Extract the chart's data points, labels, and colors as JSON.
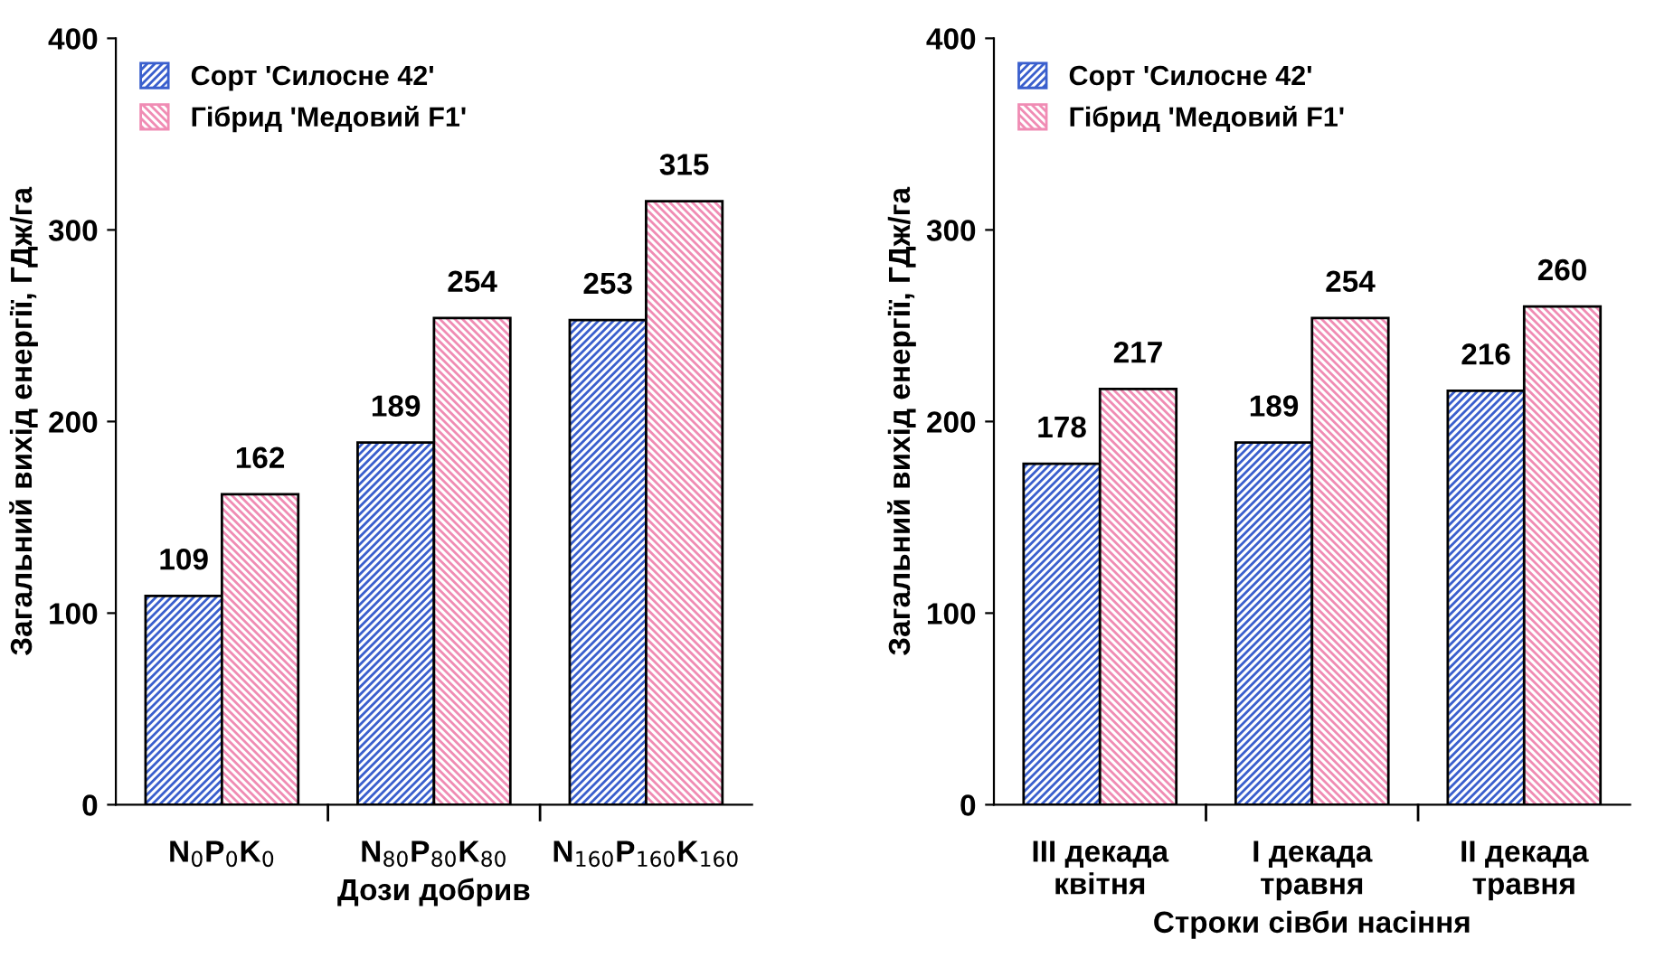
{
  "chart_data": [
    {
      "type": "bar",
      "xlabel": "Дози добрив",
      "ylabel": "Загальний вихід енергії, ГДж/га",
      "categories": [
        "N$_{0}$P$_{0}$K$_{0}$",
        "N$_{80}$P$_{80}$K$_{80}$",
        "N$_{160}$P$_{160}$K$_{160}$"
      ],
      "series": [
        {
          "name": "Сорт 'Силосне 42'",
          "color": "#3a5fcd",
          "values": [
            109,
            189,
            253
          ]
        },
        {
          "name": "Гібрид 'Медовий F1'",
          "color": "#f08cb4",
          "values": [
            162,
            254,
            315
          ]
        }
      ],
      "ylim": [
        0,
        400
      ],
      "yticks": [
        0,
        100,
        200,
        300,
        400
      ],
      "data_labels": true,
      "legend": "top left",
      "grid": false
    },
    {
      "type": "bar",
      "xlabel": "Строки сівби насіння",
      "ylabel": "Загальний вихід енергії, ГДж/га",
      "categories": [
        "III декада\nквітня",
        "I декада\nтравня",
        "II декада\nтравня"
      ],
      "series": [
        {
          "name": "Сорт 'Силосне 42'",
          "color": "#3a5fcd",
          "values": [
            178,
            189,
            216
          ]
        },
        {
          "name": "Гібрид 'Медовий F1'",
          "color": "#f08cb4",
          "values": [
            217,
            254,
            260
          ]
        }
      ],
      "ylim": [
        0,
        400
      ],
      "yticks": [
        0,
        100,
        200,
        300,
        400
      ],
      "data_labels": true,
      "legend": "top left",
      "grid": false
    }
  ]
}
